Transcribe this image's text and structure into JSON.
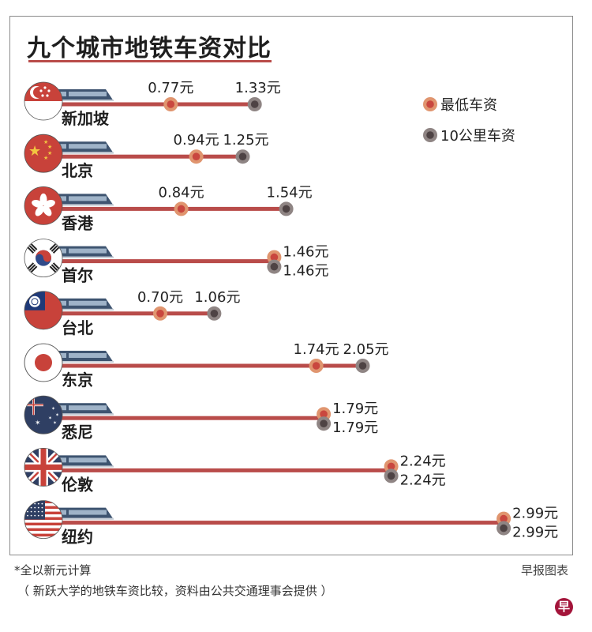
{
  "title": "九个城市地铁车资对比",
  "colors": {
    "line": "#b94c4a",
    "min_fare_outer": "#e0956f",
    "min_fare_inner": "#c9473f",
    "fare10_outer": "#8f8584",
    "fare10_inner": "#4e4344",
    "train_body": "#3e5470",
    "train_window": "#9fb3c8"
  },
  "chart_data": {
    "type": "dumbbell",
    "title": "九个城市地铁车资对比",
    "unit": "元",
    "legend": [
      {
        "key": "min",
        "label": "最低车资"
      },
      {
        "key": "km10",
        "label": "10公里车资"
      }
    ],
    "legend_position": "top-right",
    "categories": [
      "新加坡",
      "北京",
      "香港",
      "首尔",
      "台北",
      "东京",
      "悉尼",
      "伦敦",
      "纽约"
    ],
    "flags": [
      "singapore-flag",
      "china-flag",
      "hongkong-flag",
      "korea-flag",
      "taiwan-flag",
      "japan-flag",
      "australia-flag",
      "uk-flag",
      "usa-flag"
    ],
    "series": [
      {
        "name": "最低车资",
        "values": [
          0.77,
          0.94,
          0.84,
          1.46,
          0.7,
          1.74,
          1.79,
          2.24,
          2.99
        ]
      },
      {
        "name": "10公里车资",
        "values": [
          1.33,
          1.25,
          1.54,
          1.46,
          1.06,
          2.05,
          1.79,
          2.24,
          2.99
        ]
      }
    ],
    "labels": {
      "min": [
        "0.77元",
        "0.94元",
        "0.84元",
        "1.46元",
        "0.70元",
        "1.74元",
        "1.79元",
        "2.24元",
        "2.99元"
      ],
      "km10": [
        "1.33元",
        "1.25元",
        "1.54元",
        "1.46元",
        "1.06元",
        "2.05元",
        "1.79元",
        "2.24元",
        "2.99元"
      ]
    }
  },
  "footer": {
    "note": "*全以新元计算",
    "source": "（ 新跃大学的地铁车资比较，资料由公共交通理事会提供 ）",
    "credit": "早报图表",
    "logo": "早"
  }
}
